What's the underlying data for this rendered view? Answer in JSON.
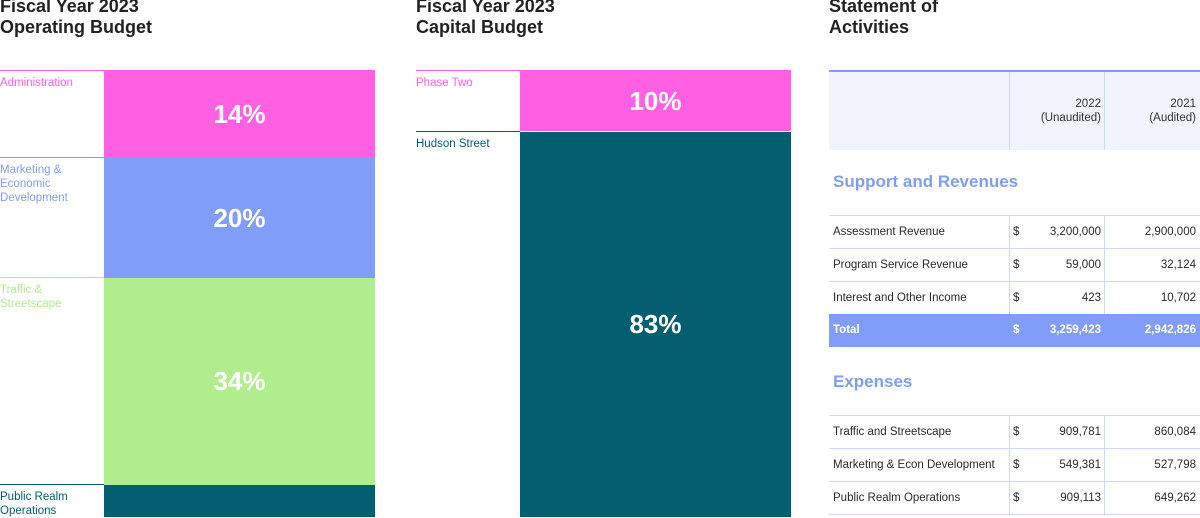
{
  "operating": {
    "title_line1": "Fiscal Year 2023",
    "title_line2": "Operating Budget",
    "segments": [
      {
        "label_lines": [
          "Administration"
        ],
        "percent": "14%",
        "color": "#ff5fe3"
      },
      {
        "label_lines": [
          "Marketing &",
          "Economic",
          "Development"
        ],
        "percent": "20%",
        "color": "#7f9df9"
      },
      {
        "label_lines": [
          "Traffic &",
          "Streetscape"
        ],
        "percent": "34%",
        "color": "#b0ee8d"
      },
      {
        "label_lines": [
          "Public Realm",
          "Operations"
        ],
        "percent": "",
        "color": "#035f6f"
      }
    ]
  },
  "capital": {
    "title_line1": "Fiscal Year 2023",
    "title_line2": "Capital Budget",
    "segments": [
      {
        "label": "Phase Two",
        "percent": "10%",
        "color": "#ff5fe3"
      },
      {
        "label": "Hudson Street",
        "percent": "83%",
        "color": "#035f6f"
      }
    ]
  },
  "statement": {
    "title_line1": "Statement of",
    "title_line2": "Activities",
    "col1_line1": "2022",
    "col1_line2": "(Unaudited)",
    "col2_line1": "2021",
    "col2_line2": "(Audited)",
    "support_title": "Support and Revenues",
    "support_rows": [
      {
        "desc": "Assessment Revenue",
        "cur": "$",
        "v2022": "3,200,000",
        "v2021": "2,900,000"
      },
      {
        "desc": "Program Service Revenue",
        "cur": "$",
        "v2022": "59,000",
        "v2021": "32,124"
      },
      {
        "desc": "Interest and Other Income",
        "cur": "$",
        "v2022": "423",
        "v2021": "10,702"
      }
    ],
    "support_total": {
      "desc": "Total",
      "cur": "$",
      "v2022": "3,259,423",
      "v2021": "2,942,826"
    },
    "expenses_title": "Expenses",
    "expense_rows": [
      {
        "desc": "Traffic and Streetscape",
        "cur": "$",
        "v2022": "909,781",
        "v2021": "860,084"
      },
      {
        "desc": "Marketing & Econ Development",
        "cur": "$",
        "v2022": "549,381",
        "v2021": "527,798"
      },
      {
        "desc": "Public Realm Operations",
        "cur": "$",
        "v2022": "909,113",
        "v2021": "649,262"
      }
    ]
  }
}
